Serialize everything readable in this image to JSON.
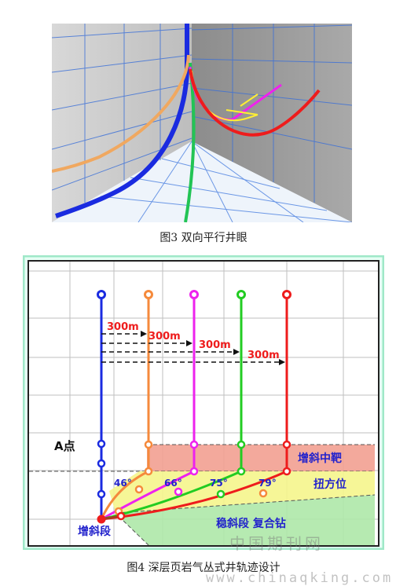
{
  "figure3": {
    "caption": "图3 双向平行井眼"
  },
  "figure4": {
    "caption": "图4 深层页岩气丛式井轨迹设计",
    "distance_labels": [
      "300m",
      "300m",
      "300m",
      "300m"
    ],
    "point_label": "A点",
    "angle_labels": [
      "46°",
      "66°",
      "75°",
      "79°"
    ],
    "zone_labels": {
      "target": "增斜中靶",
      "turn": "扭方位",
      "hold": "稳斜段 复合钻",
      "build": "增斜段"
    },
    "colors": {
      "well_1": "#1a2be0",
      "well_2": "#f58a3c",
      "well_3": "#ee22ee",
      "well_4": "#22cc22",
      "well_5": "#ee1c1c",
      "target_zone": "#f2a091",
      "turn_zone": "#f5f58c",
      "hold_zone": "#aee8a8"
    }
  },
  "watermarks": [
    "中国期刊网",
    "www.chinaqking.com"
  ]
}
